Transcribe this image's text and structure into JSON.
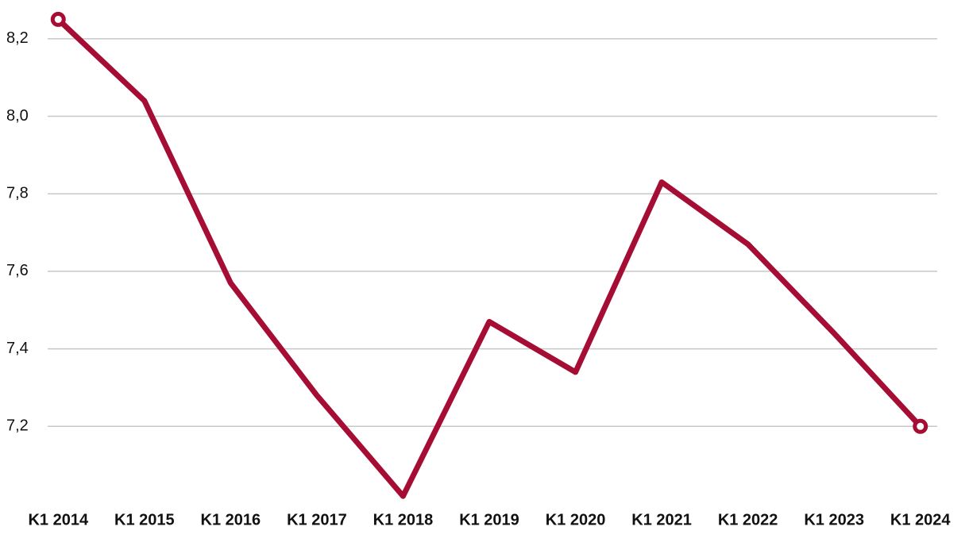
{
  "chart_data": {
    "type": "line",
    "categories": [
      "K1 2014",
      "K1 2015",
      "K1 2016",
      "K1 2017",
      "K1 2018",
      "K1 2019",
      "K1 2020",
      "K1 2021",
      "K1 2022",
      "K1 2023",
      "K1 2024"
    ],
    "values": [
      8.25,
      8.04,
      7.57,
      7.28,
      7.02,
      7.47,
      7.34,
      7.83,
      7.67,
      7.44,
      7.2
    ],
    "color": "#a50d34",
    "ylim": [
      7.0,
      8.3
    ],
    "yticks": [
      {
        "value": 7.2,
        "label": "7,2"
      },
      {
        "value": 7.4,
        "label": "7,4"
      },
      {
        "value": 7.6,
        "label": "7,6"
      },
      {
        "value": 7.8,
        "label": "7,8"
      },
      {
        "value": 8.0,
        "label": "8,0"
      },
      {
        "value": 8.2,
        "label": "8,2"
      }
    ],
    "grid": true,
    "end_markers": true
  }
}
